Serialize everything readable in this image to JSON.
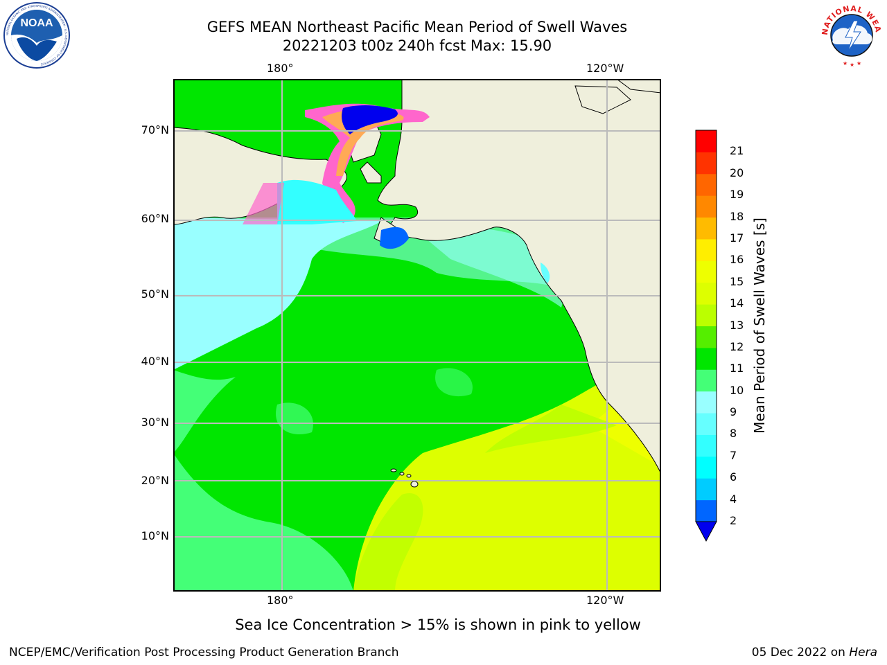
{
  "title": {
    "line1": "GEFS MEAN Northeast Pacific Mean Period of Swell Waves",
    "line2": "20221203 t00z 240h fcst   Max: 15.90"
  },
  "map": {
    "lat_labels": [
      "70°N",
      "60°N",
      "50°N",
      "40°N",
      "30°N",
      "20°N",
      "10°N"
    ],
    "lon_labels": [
      "180°",
      "120°W"
    ],
    "sea_ice_note": "Sea Ice Concentration > 15% is shown in pink to yellow"
  },
  "colorbar": {
    "title": "Mean Period of Swell Waves [s]",
    "labels": [
      "2",
      "4",
      "6",
      "7",
      "8",
      "9",
      "10",
      "11",
      "12",
      "13",
      "14",
      "15",
      "16",
      "17",
      "18",
      "19",
      "20",
      "21"
    ],
    "colors": [
      "#0066ff",
      "#00ccff",
      "#00ffff",
      "#33ffff",
      "#66ffff",
      "#99ffff",
      "#44ff77",
      "#00e600",
      "#55ee00",
      "#bbff00",
      "#ddff00",
      "#eeff00",
      "#ffee00",
      "#ffbb00",
      "#ff8800",
      "#ff6600",
      "#ff3300",
      "#ff0000"
    ]
  },
  "logos": {
    "left": "NOAA",
    "left_ring": "NATIONAL OCEANIC AND ATMOSPHERIC ADMINISTRATION · U.S. DEPARTMENT OF COMMERCE",
    "right_ring": "NATIONAL WEATHER SERVICE"
  },
  "footer": {
    "left": "NCEP/EMC/Verification Post Processing Product Generation Branch",
    "right_prefix": "05 Dec 2022 on ",
    "right_host": "Hera"
  }
}
